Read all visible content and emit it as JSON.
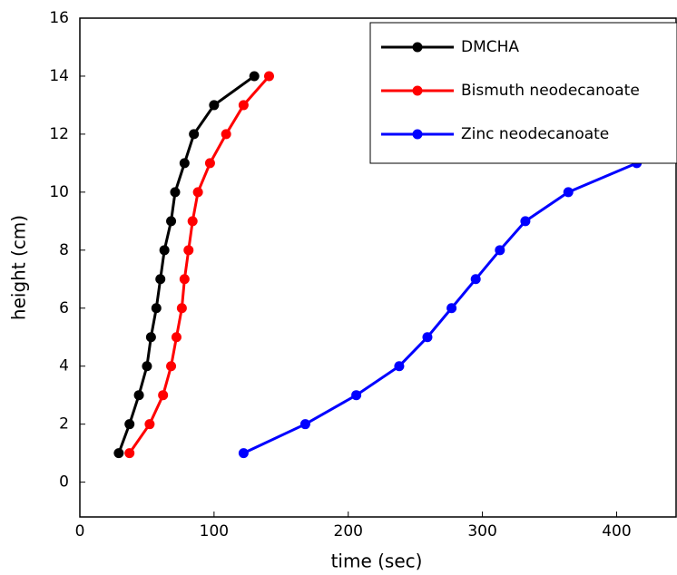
{
  "chart_data": {
    "type": "line",
    "xlabel": "time (sec)",
    "ylabel": "height (cm)",
    "xlim": [
      0,
      445
    ],
    "ylim": [
      -1.2,
      16
    ],
    "xticks": [
      0,
      100,
      200,
      300,
      400
    ],
    "yticks": [
      0,
      2,
      4,
      6,
      8,
      10,
      12,
      14,
      16
    ],
    "legend": "upper right",
    "series": [
      {
        "name": "DMCHA",
        "color": "#000000",
        "x": [
          29,
          37,
          44,
          50,
          53,
          57,
          60,
          63,
          68,
          71,
          78,
          85,
          100,
          130
        ],
        "values": [
          1,
          2,
          3,
          4,
          5,
          6,
          7,
          8,
          9,
          10,
          11,
          12,
          13,
          14
        ]
      },
      {
        "name": "Bismuth neodecanoate",
        "color": "#ff0000",
        "x": [
          37,
          52,
          62,
          68,
          72,
          76,
          78,
          81,
          84,
          88,
          97,
          109,
          122,
          141
        ],
        "values": [
          1,
          2,
          3,
          4,
          5,
          6,
          7,
          8,
          9,
          10,
          11,
          12,
          13,
          14
        ]
      },
      {
        "name": "Zinc neodecanoate",
        "color": "#0000ff",
        "x": [
          122,
          168,
          206,
          238,
          259,
          277,
          295,
          313,
          332,
          364,
          415
        ],
        "values": [
          1,
          2,
          3,
          4,
          5,
          6,
          7,
          8,
          9,
          10,
          11
        ]
      }
    ]
  }
}
